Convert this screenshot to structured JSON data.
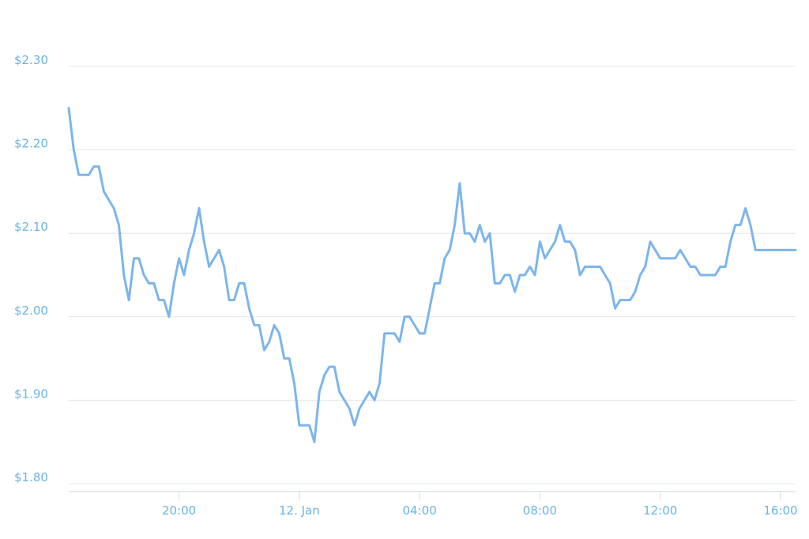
{
  "chart_data": {
    "type": "line",
    "x": [
      "11. Jan 16:20",
      "11. Jan 16:30",
      "11. Jan 16:40",
      "11. Jan 16:50",
      "11. Jan 17:00",
      "11. Jan 17:10",
      "11. Jan 17:20",
      "11. Jan 17:30",
      "11. Jan 17:40",
      "11. Jan 17:50",
      "11. Jan 18:00",
      "11. Jan 18:10",
      "11. Jan 18:20",
      "11. Jan 18:30",
      "11. Jan 18:40",
      "11. Jan 18:50",
      "11. Jan 19:00",
      "11. Jan 19:10",
      "11. Jan 19:20",
      "11. Jan 19:30",
      "11. Jan 19:40",
      "11. Jan 19:50",
      "11. Jan 20:00",
      "11. Jan 20:10",
      "11. Jan 20:20",
      "11. Jan 20:30",
      "11. Jan 20:40",
      "11. Jan 20:50",
      "11. Jan 21:00",
      "11. Jan 21:10",
      "11. Jan 21:20",
      "11. Jan 21:30",
      "11. Jan 21:40",
      "11. Jan 21:50",
      "11. Jan 22:00",
      "11. Jan 22:10",
      "11. Jan 22:20",
      "11. Jan 22:30",
      "11. Jan 22:40",
      "11. Jan 22:50",
      "11. Jan 23:00",
      "11. Jan 23:10",
      "11. Jan 23:20",
      "11. Jan 23:30",
      "11. Jan 23:40",
      "11. Jan 23:50",
      "12. Jan 00:00",
      "12. Jan 00:10",
      "12. Jan 00:20",
      "12. Jan 00:30",
      "12. Jan 00:40",
      "12. Jan 00:50",
      "12. Jan 01:00",
      "12. Jan 01:10",
      "12. Jan 01:20",
      "12. Jan 01:30",
      "12. Jan 01:40",
      "12. Jan 01:50",
      "12. Jan 02:00",
      "12. Jan 02:10",
      "12. Jan 02:20",
      "12. Jan 02:30",
      "12. Jan 02:40",
      "12. Jan 02:50",
      "12. Jan 03:00",
      "12. Jan 03:10",
      "12. Jan 03:20",
      "12. Jan 03:30",
      "12. Jan 03:40",
      "12. Jan 03:50",
      "12. Jan 04:00",
      "12. Jan 04:10",
      "12. Jan 04:20",
      "12. Jan 04:30",
      "12. Jan 04:40",
      "12. Jan 04:50",
      "12. Jan 05:00",
      "12. Jan 05:10",
      "12. Jan 05:20",
      "12. Jan 05:30",
      "12. Jan 05:40",
      "12. Jan 05:50",
      "12. Jan 06:00",
      "12. Jan 06:10",
      "12. Jan 06:20",
      "12. Jan 06:30",
      "12. Jan 06:40",
      "12. Jan 06:50",
      "12. Jan 07:00",
      "12. Jan 07:10",
      "12. Jan 07:20",
      "12. Jan 07:30",
      "12. Jan 07:40",
      "12. Jan 07:50",
      "12. Jan 08:00",
      "12. Jan 08:10",
      "12. Jan 08:20",
      "12. Jan 08:30",
      "12. Jan 08:40",
      "12. Jan 08:50",
      "12. Jan 09:00",
      "12. Jan 09:10",
      "12. Jan 09:20",
      "12. Jan 09:30",
      "12. Jan 09:40",
      "12. Jan 09:50",
      "12. Jan 10:00",
      "12. Jan 10:10",
      "12. Jan 10:20",
      "12. Jan 10:30",
      "12. Jan 10:40",
      "12. Jan 10:50",
      "12. Jan 11:00",
      "12. Jan 11:10",
      "12. Jan 11:20",
      "12. Jan 11:30",
      "12. Jan 11:40",
      "12. Jan 11:50",
      "12. Jan 12:00",
      "12. Jan 12:10",
      "12. Jan 12:20",
      "12. Jan 12:30",
      "12. Jan 12:40",
      "12. Jan 12:50",
      "12. Jan 13:00",
      "12. Jan 13:10",
      "12. Jan 13:20",
      "12. Jan 13:30",
      "12. Jan 13:40",
      "12. Jan 13:50",
      "12. Jan 14:00",
      "12. Jan 14:10",
      "12. Jan 14:20",
      "12. Jan 14:30",
      "12. Jan 14:40",
      "12. Jan 14:50",
      "12. Jan 15:00",
      "12. Jan 15:10",
      "12. Jan 15:20",
      "12. Jan 15:30",
      "12. Jan 15:40",
      "12. Jan 15:50",
      "12. Jan 16:00",
      "12. Jan 16:10",
      "12. Jan 16:20",
      "12. Jan 16:30"
    ],
    "series": [
      {
        "color": "#7cb5ec",
        "values": [
          2.25,
          2.2,
          2.17,
          2.17,
          2.17,
          2.18,
          2.18,
          2.15,
          2.14,
          2.13,
          2.11,
          2.05,
          2.02,
          2.07,
          2.07,
          2.05,
          2.04,
          2.04,
          2.02,
          2.02,
          2.0,
          2.04,
          2.07,
          2.05,
          2.08,
          2.1,
          2.13,
          2.09,
          2.06,
          2.07,
          2.08,
          2.06,
          2.02,
          2.02,
          2.04,
          2.04,
          2.01,
          1.99,
          1.99,
          1.96,
          1.97,
          1.99,
          1.98,
          1.95,
          1.95,
          1.92,
          1.87,
          1.87,
          1.87,
          1.85,
          1.91,
          1.93,
          1.94,
          1.94,
          1.91,
          1.9,
          1.89,
          1.87,
          1.89,
          1.9,
          1.91,
          1.9,
          1.92,
          1.98,
          1.98,
          1.98,
          1.97,
          2.0,
          2.0,
          1.99,
          1.98,
          1.98,
          2.01,
          2.04,
          2.04,
          2.07,
          2.08,
          2.11,
          2.16,
          2.1,
          2.1,
          2.09,
          2.11,
          2.09,
          2.1,
          2.04,
          2.04,
          2.05,
          2.05,
          2.03,
          2.05,
          2.05,
          2.06,
          2.05,
          2.09,
          2.07,
          2.08,
          2.09,
          2.11,
          2.09,
          2.09,
          2.08,
          2.05,
          2.06,
          2.06,
          2.06,
          2.06,
          2.05,
          2.04,
          2.01,
          2.02,
          2.02,
          2.02,
          2.03,
          2.05,
          2.06,
          2.09,
          2.08,
          2.07,
          2.07,
          2.07,
          2.07,
          2.08,
          2.07,
          2.06,
          2.06,
          2.05,
          2.05,
          2.05,
          2.05,
          2.06,
          2.06,
          2.09,
          2.11,
          2.11,
          2.13,
          2.11,
          2.08,
          2.08,
          2.08,
          2.08,
          2.08,
          2.08,
          2.08,
          2.08,
          2.08
        ]
      }
    ],
    "xlim": [
      "11. Jan 16:20",
      "12. Jan 16:30"
    ],
    "xticks": [
      {
        "value": "11. Jan 20:00",
        "label": "20:00"
      },
      {
        "value": "12. Jan 00:00",
        "label": "12. Jan"
      },
      {
        "value": "12. Jan 04:00",
        "label": "04:00"
      },
      {
        "value": "12. Jan 08:00",
        "label": "08:00"
      },
      {
        "value": "12. Jan 12:00",
        "label": "12:00"
      },
      {
        "value": "12. Jan 16:00",
        "label": "16:00"
      }
    ],
    "ylim": [
      1.8,
      2.3
    ],
    "yticks": [
      {
        "value": 1.8,
        "label": "$1.80"
      },
      {
        "value": 1.9,
        "label": "$1.90"
      },
      {
        "value": 2.0,
        "label": "$2.00"
      },
      {
        "value": 2.1,
        "label": "$2.10"
      },
      {
        "value": 2.2,
        "label": "$2.20"
      },
      {
        "value": 2.3,
        "label": "$2.30"
      }
    ],
    "grid": true
  }
}
